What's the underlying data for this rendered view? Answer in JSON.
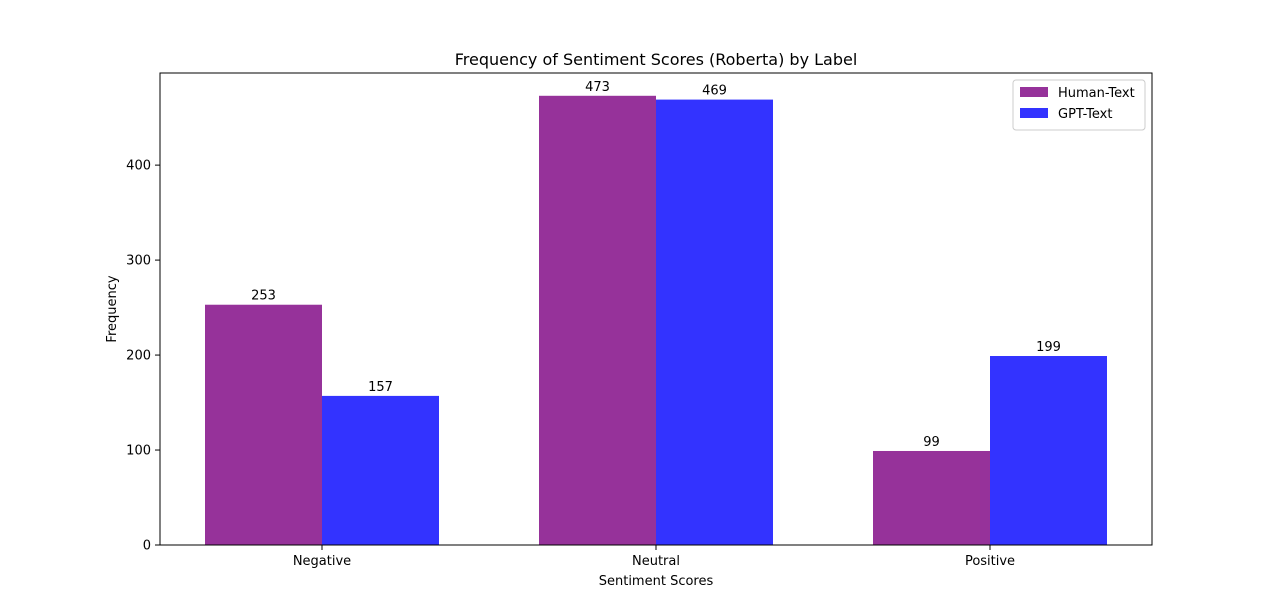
{
  "chart_data": {
    "type": "bar",
    "title": "Frequency of Sentiment Scores (Roberta) by Label",
    "xlabel": "Sentiment Scores",
    "ylabel": "Frequency",
    "categories": [
      "Negative",
      "Neutral",
      "Positive"
    ],
    "series": [
      {
        "name": "Human-Text",
        "values": [
          253,
          473,
          99
        ],
        "color": "#96329a"
      },
      {
        "name": "GPT-Text",
        "values": [
          157,
          469,
          199
        ],
        "color": "#3333ff"
      }
    ],
    "ylim": [
      0,
      497
    ],
    "yticks": [
      0,
      100,
      200,
      300,
      400
    ],
    "grid": false,
    "legend_position": "top-right",
    "data_labels": true
  }
}
